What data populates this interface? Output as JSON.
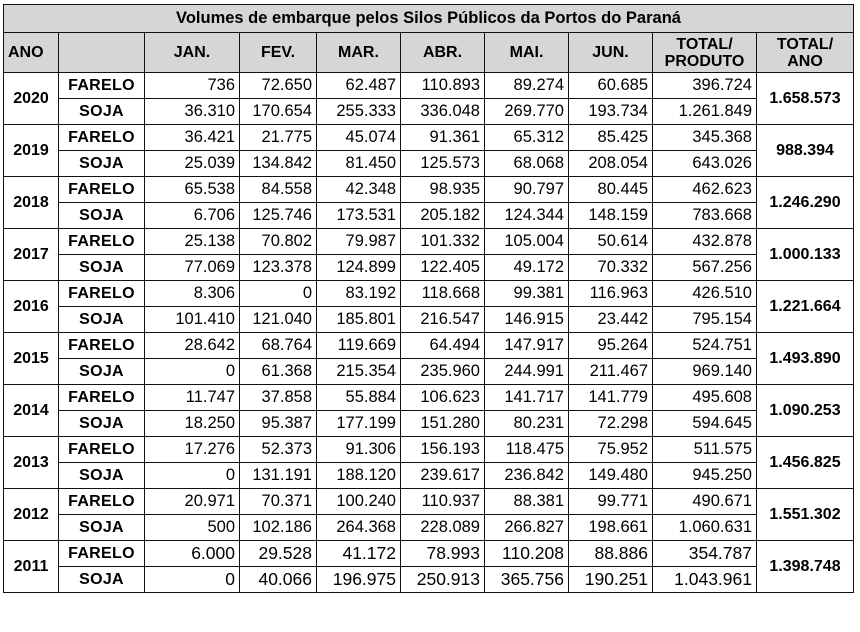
{
  "title": "Volumes de embarque pelos Silos Públicos da Portos do Paraná",
  "headers": {
    "ano": "ANO",
    "months": [
      "JAN.",
      "FEV.",
      "MAR.",
      "ABR.",
      "MAI.",
      "JUN."
    ],
    "total_produto": [
      "TOTAL/",
      "PRODUTO"
    ],
    "total_ano": [
      "TOTAL/",
      "ANO"
    ]
  },
  "rows": [
    {
      "year": "2020",
      "total_ano": "1.658.573",
      "products": [
        {
          "name": "FARELO",
          "values": [
            "736",
            "72.650",
            "62.487",
            "110.893",
            "89.274",
            "60.685"
          ],
          "total": "396.724"
        },
        {
          "name": "SOJA",
          "values": [
            "36.310",
            "170.654",
            "255.333",
            "336.048",
            "269.770",
            "193.734"
          ],
          "total": "1.261.849"
        }
      ]
    },
    {
      "year": "2019",
      "total_ano": "988.394",
      "products": [
        {
          "name": "FARELO",
          "values": [
            "36.421",
            "21.775",
            "45.074",
            "91.361",
            "65.312",
            "85.425"
          ],
          "total": "345.368"
        },
        {
          "name": "SOJA",
          "values": [
            "25.039",
            "134.842",
            "81.450",
            "125.573",
            "68.068",
            "208.054"
          ],
          "total": "643.026"
        }
      ]
    },
    {
      "year": "2018",
      "total_ano": "1.246.290",
      "products": [
        {
          "name": "FARELO",
          "values": [
            "65.538",
            "84.558",
            "42.348",
            "98.935",
            "90.797",
            "80.445"
          ],
          "total": "462.623"
        },
        {
          "name": "SOJA",
          "values": [
            "6.706",
            "125.746",
            "173.531",
            "205.182",
            "124.344",
            "148.159"
          ],
          "total": "783.668"
        }
      ]
    },
    {
      "year": "2017",
      "total_ano": "1.000.133",
      "products": [
        {
          "name": "FARELO",
          "values": [
            "25.138",
            "70.802",
            "79.987",
            "101.332",
            "105.004",
            "50.614"
          ],
          "total": "432.878"
        },
        {
          "name": "SOJA",
          "values": [
            "77.069",
            "123.378",
            "124.899",
            "122.405",
            "49.172",
            "70.332"
          ],
          "total": "567.256"
        }
      ]
    },
    {
      "year": "2016",
      "total_ano": "1.221.664",
      "products": [
        {
          "name": "FARELO",
          "values": [
            "8.306",
            "0",
            "83.192",
            "118.668",
            "99.381",
            "116.963"
          ],
          "total": "426.510"
        },
        {
          "name": "SOJA",
          "values": [
            "101.410",
            "121.040",
            "185.801",
            "216.547",
            "146.915",
            "23.442"
          ],
          "total": "795.154"
        }
      ]
    },
    {
      "year": "2015",
      "total_ano": "1.493.890",
      "products": [
        {
          "name": "FARELO",
          "values": [
            "28.642",
            "68.764",
            "119.669",
            "64.494",
            "147.917",
            "95.264"
          ],
          "total": "524.751"
        },
        {
          "name": "SOJA",
          "values": [
            "0",
            "61.368",
            "215.354",
            "235.960",
            "244.991",
            "211.467"
          ],
          "total": "969.140"
        }
      ]
    },
    {
      "year": "2014",
      "total_ano": "1.090.253",
      "products": [
        {
          "name": "FARELO",
          "values": [
            "11.747",
            "37.858",
            "55.884",
            "106.623",
            "141.717",
            "141.779"
          ],
          "total": "495.608"
        },
        {
          "name": "SOJA",
          "values": [
            "18.250",
            "95.387",
            "177.199",
            "151.280",
            "80.231",
            "72.298"
          ],
          "total": "594.645"
        }
      ]
    },
    {
      "year": "2013",
      "total_ano": "1.456.825",
      "products": [
        {
          "name": "FARELO",
          "values": [
            "17.276",
            "52.373",
            "91.306",
            "156.193",
            "118.475",
            "75.952"
          ],
          "total": "511.575"
        },
        {
          "name": "SOJA",
          "values": [
            "0",
            "131.191",
            "188.120",
            "239.617",
            "236.842",
            "149.480"
          ],
          "total": "945.250"
        }
      ]
    },
    {
      "year": "2012",
      "total_ano": "1.551.302",
      "products": [
        {
          "name": "FARELO",
          "values": [
            "20.971",
            "70.371",
            "100.240",
            "110.937",
            "88.381",
            "99.771"
          ],
          "total": "490.671"
        },
        {
          "name": "SOJA",
          "values": [
            "500",
            "102.186",
            "264.368",
            "228.089",
            "266.827",
            "198.661"
          ],
          "total": "1.060.631"
        }
      ]
    },
    {
      "year": "2011",
      "total_ano": "1.398.748",
      "products": [
        {
          "name": "FARELO",
          "values": [
            "6.000",
            "29.528",
            "41.172",
            "78.993",
            "110.208",
            "88.886"
          ],
          "total": "354.787"
        },
        {
          "name": "SOJA",
          "values": [
            "0",
            "40.066",
            "196.975",
            "250.913",
            "365.756",
            "190.251"
          ],
          "total": "1.043.961"
        }
      ]
    }
  ]
}
